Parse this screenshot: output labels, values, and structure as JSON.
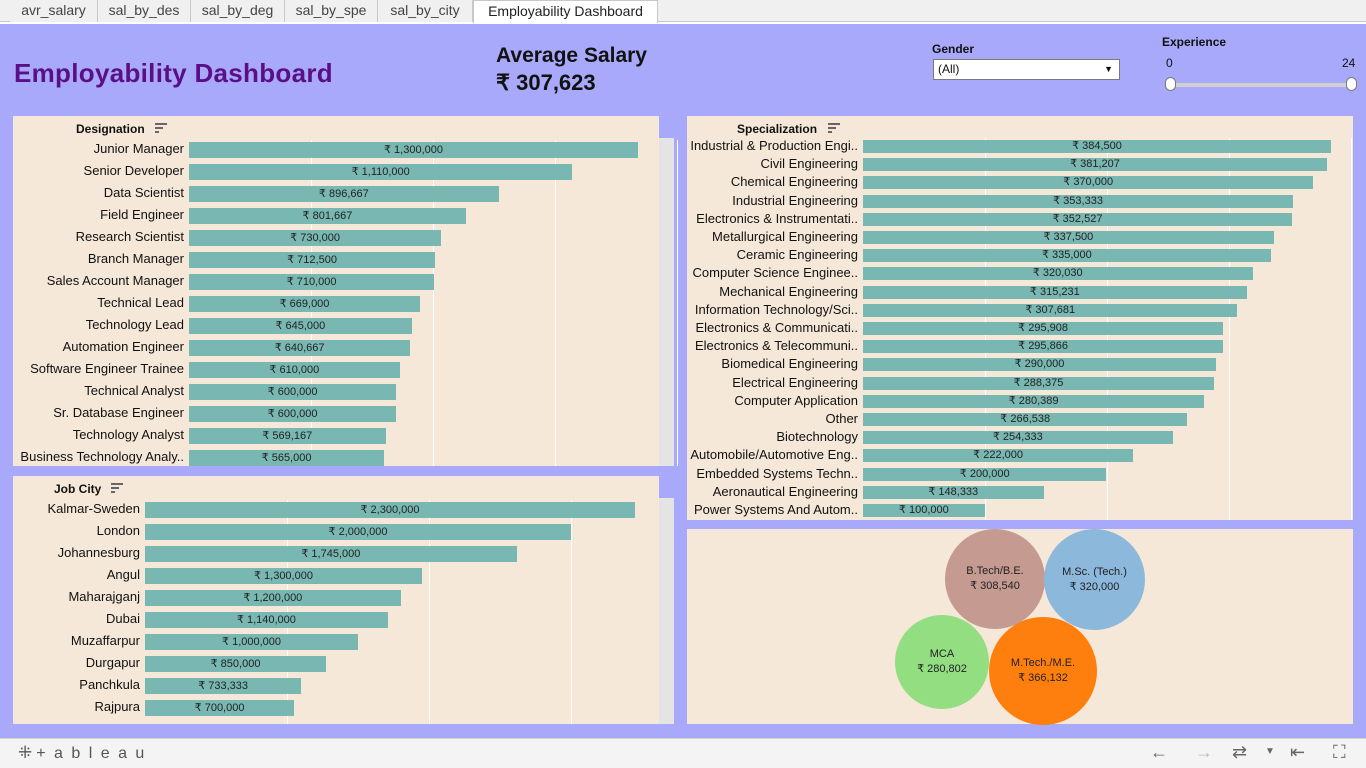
{
  "tabs": [
    {
      "label": "avr_salary",
      "active": false
    },
    {
      "label": "sal_by_des",
      "active": false
    },
    {
      "label": "sal_by_deg",
      "active": false
    },
    {
      "label": "sal_by_spe",
      "active": false
    },
    {
      "label": "sal_by_city",
      "active": false
    },
    {
      "label": "Employability Dashboard",
      "active": true
    }
  ],
  "dashboard": {
    "title": "Employability Dashboard",
    "average_salary_label": "Average Salary",
    "average_salary_value": "₹ 307,623"
  },
  "filters": {
    "gender": {
      "label": "Gender",
      "value": "(All)"
    },
    "experience": {
      "label": "Experience",
      "min": "0",
      "max": "24",
      "selected_min": 0,
      "selected_max": 24
    }
  },
  "colors": {
    "background": "#a9a9fb",
    "panel": "#f5e8d8",
    "bar": "#79b8b2",
    "title": "#5a0f86"
  },
  "designation": {
    "title": "Designation",
    "max_value": 1300000,
    "rows": [
      {
        "label": "Junior Manager",
        "value": 1300000,
        "value_label": "₹ 1,300,000"
      },
      {
        "label": "Senior Developer",
        "value": 1110000,
        "value_label": "₹ 1,110,000"
      },
      {
        "label": "Data Scientist",
        "value": 896667,
        "value_label": "₹ 896,667"
      },
      {
        "label": "Field Engineer",
        "value": 801667,
        "value_label": "₹ 801,667"
      },
      {
        "label": "Research Scientist",
        "value": 730000,
        "value_label": "₹ 730,000"
      },
      {
        "label": "Branch Manager",
        "value": 712500,
        "value_label": "₹ 712,500"
      },
      {
        "label": "Sales Account Manager",
        "value": 710000,
        "value_label": "₹ 710,000"
      },
      {
        "label": "Technical Lead",
        "value": 669000,
        "value_label": "₹ 669,000"
      },
      {
        "label": "Technology Lead",
        "value": 645000,
        "value_label": "₹ 645,000"
      },
      {
        "label": "Automation Engineer",
        "value": 640667,
        "value_label": "₹ 640,667"
      },
      {
        "label": "Software Engineer Trainee",
        "value": 610000,
        "value_label": "₹ 610,000"
      },
      {
        "label": "Technical Analyst",
        "value": 600000,
        "value_label": "₹ 600,000"
      },
      {
        "label": "Sr. Database Engineer",
        "value": 600000,
        "value_label": "₹ 600,000"
      },
      {
        "label": "Technology Analyst",
        "value": 569167,
        "value_label": "₹ 569,167"
      },
      {
        "label": "Business Technology Analy..",
        "value": 565000,
        "value_label": "₹ 565,000"
      }
    ]
  },
  "job_city": {
    "title": "Job City",
    "max_value": 2300000,
    "rows": [
      {
        "label": "Kalmar-Sweden",
        "value": 2300000,
        "value_label": "₹ 2,300,000"
      },
      {
        "label": "London",
        "value": 2000000,
        "value_label": "₹ 2,000,000"
      },
      {
        "label": "Johannesburg",
        "value": 1745000,
        "value_label": "₹ 1,745,000"
      },
      {
        "label": "Angul",
        "value": 1300000,
        "value_label": "₹ 1,300,000"
      },
      {
        "label": "Maharajganj",
        "value": 1200000,
        "value_label": "₹ 1,200,000"
      },
      {
        "label": "Dubai",
        "value": 1140000,
        "value_label": "₹ 1,140,000"
      },
      {
        "label": "Muzaffarpur",
        "value": 1000000,
        "value_label": "₹ 1,000,000"
      },
      {
        "label": "Durgapur",
        "value": 850000,
        "value_label": "₹ 850,000"
      },
      {
        "label": "Panchkula",
        "value": 733333,
        "value_label": "₹ 733,333"
      },
      {
        "label": "Rajpura",
        "value": 700000,
        "value_label": "₹ 700,000"
      }
    ]
  },
  "specialization": {
    "title": "Specialization",
    "max_value": 384500,
    "rows": [
      {
        "label": "Industrial & Production Engi..",
        "value": 384500,
        "value_label": "₹ 384,500"
      },
      {
        "label": "Civil Engineering",
        "value": 381207,
        "value_label": "₹ 381,207"
      },
      {
        "label": "Chemical Engineering",
        "value": 370000,
        "value_label": "₹ 370,000"
      },
      {
        "label": "Industrial Engineering",
        "value": 353333,
        "value_label": "₹ 353,333"
      },
      {
        "label": "Electronics & Instrumentati..",
        "value": 352527,
        "value_label": "₹ 352,527"
      },
      {
        "label": "Metallurgical Engineering",
        "value": 337500,
        "value_label": "₹ 337,500"
      },
      {
        "label": "Ceramic Engineering",
        "value": 335000,
        "value_label": "₹ 335,000"
      },
      {
        "label": "Computer Science Enginee..",
        "value": 320030,
        "value_label": "₹ 320,030"
      },
      {
        "label": "Mechanical Engineering",
        "value": 315231,
        "value_label": "₹ 315,231"
      },
      {
        "label": "Information Technology/Sci..",
        "value": 307681,
        "value_label": "₹ 307,681"
      },
      {
        "label": "Electronics & Communicati..",
        "value": 295908,
        "value_label": "₹ 295,908"
      },
      {
        "label": "Electronics & Telecommuni..",
        "value": 295866,
        "value_label": "₹ 295,866"
      },
      {
        "label": "Biomedical Engineering",
        "value": 290000,
        "value_label": "₹ 290,000"
      },
      {
        "label": "Electrical Engineering",
        "value": 288375,
        "value_label": "₹ 288,375"
      },
      {
        "label": "Computer Application",
        "value": 280389,
        "value_label": "₹ 280,389"
      },
      {
        "label": "Other",
        "value": 266538,
        "value_label": "₹ 266,538"
      },
      {
        "label": "Biotechnology",
        "value": 254333,
        "value_label": "₹ 254,333"
      },
      {
        "label": "Automobile/Automotive Eng..",
        "value": 222000,
        "value_label": "₹ 222,000"
      },
      {
        "label": "Embedded Systems Techn..",
        "value": 200000,
        "value_label": "₹ 200,000"
      },
      {
        "label": "Aeronautical Engineering",
        "value": 148333,
        "value_label": "₹ 148,333"
      },
      {
        "label": "Power Systems And Autom..",
        "value": 100000,
        "value_label": "₹ 100,000"
      }
    ]
  },
  "degree_bubbles": [
    {
      "name": "B.Tech/B.E.",
      "value_label": "₹ 308,540",
      "color": "#c49a91"
    },
    {
      "name": "M.Sc. (Tech.)",
      "value_label": "₹ 320,000",
      "color": "#8cb8dc"
    },
    {
      "name": "MCA",
      "value_label": "₹ 280,802",
      "color": "#93de80"
    },
    {
      "name": "M.Tech./M.E.",
      "value_label": "₹ 366,132",
      "color": "#ff7f0e"
    }
  ],
  "toolbar": {
    "brand": "+ a b l e a u",
    "icons": [
      "undo-icon",
      "redo-icon",
      "revert-icon",
      "dropdown-icon",
      "reset-icon",
      "fullscreen-icon"
    ]
  }
}
